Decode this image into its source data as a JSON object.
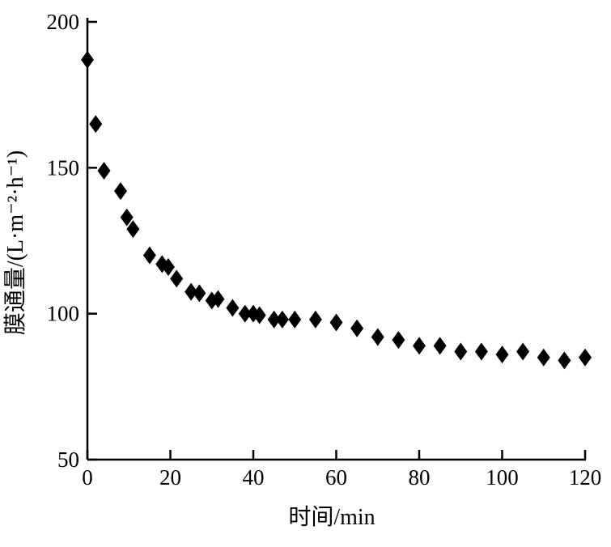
{
  "chart_data": {
    "type": "scatter",
    "title": "",
    "xlabel": "时间/min",
    "ylabel": "膜通量/(L·m⁻²·h⁻¹)",
    "xlim": [
      0,
      120
    ],
    "ylim": [
      50,
      200
    ],
    "xticks": [
      0,
      20,
      40,
      60,
      80,
      100,
      120
    ],
    "yticks": [
      50,
      100,
      150,
      200
    ],
    "grid": false,
    "marker": "diamond",
    "marker_color": "#000000",
    "series": [
      {
        "x": [
          0,
          2,
          4,
          8,
          9.5,
          11,
          15,
          18,
          19.5,
          21.5,
          25,
          27,
          30,
          31.5,
          35,
          38,
          40,
          41.5,
          45,
          47,
          50,
          55,
          60,
          65,
          70,
          75,
          80,
          85,
          90,
          95,
          100,
          105,
          110,
          115,
          120
        ],
        "y": [
          187,
          165,
          149,
          142,
          133,
          129,
          120,
          117,
          116,
          112,
          107.5,
          107,
          104.5,
          105,
          102,
          100,
          100,
          99.5,
          98,
          98,
          98,
          98,
          97,
          95,
          92,
          91,
          89,
          89,
          87,
          87,
          86,
          87,
          85,
          84,
          85
        ]
      }
    ]
  }
}
